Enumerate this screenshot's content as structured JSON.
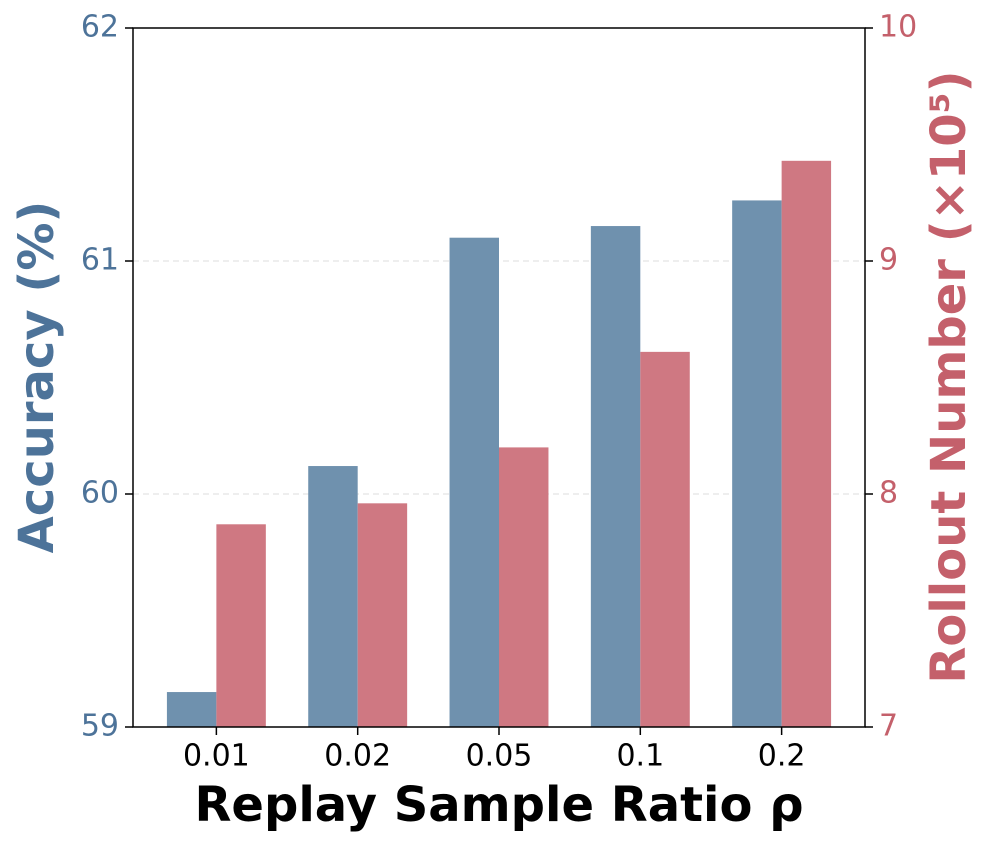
{
  "chart_data": {
    "type": "bar",
    "xlabel": "Replay Sample Ratio ρ",
    "ylabel": "Accuracy (%)",
    "y2label": "Rollout Number (×10⁵)",
    "categories": [
      "0.01",
      "0.02",
      "0.05",
      "0.1",
      "0.2"
    ],
    "series": [
      {
        "color": "#6f91ae",
        "values": [
          59.15,
          60.12,
          61.1,
          61.15,
          61.26
        ]
      },
      {
        "color": "#cf7882",
        "axis": "y2",
        "values": [
          7.87,
          7.96,
          8.2,
          8.61,
          9.43
        ]
      }
    ],
    "ylim": [
      59,
      62
    ],
    "yticks": [
      59,
      60,
      61,
      62
    ],
    "ycolor": "#4d7399",
    "y2lim": [
      7,
      10
    ],
    "y2ticks": [
      7,
      8,
      9,
      10
    ],
    "y2color": "#c4606b",
    "grid": true
  }
}
